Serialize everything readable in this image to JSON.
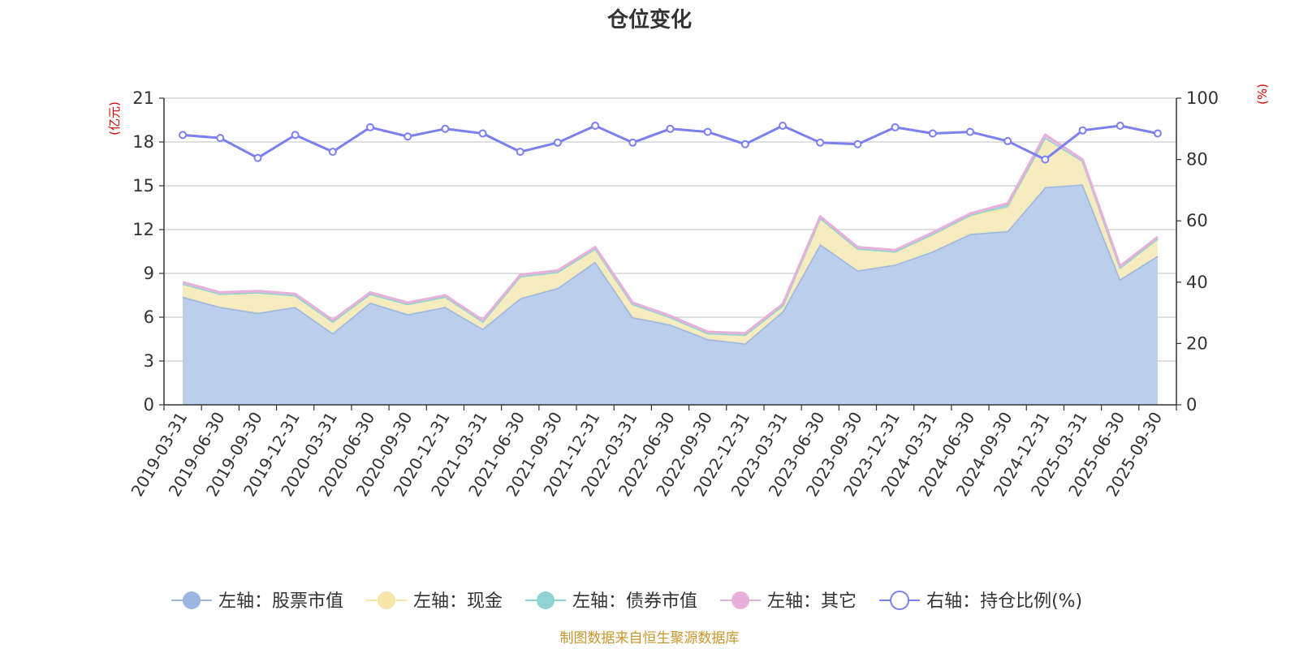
{
  "chart_data": {
    "type": "area",
    "title": "仓位变化",
    "source_note": "制图数据来自恒生聚源数据库",
    "y_left_unit": "(亿元)",
    "y_right_unit": "(%)",
    "ylim_left": [
      0,
      21
    ],
    "ylim_right": [
      0,
      100
    ],
    "y_left_ticks": [
      0,
      3,
      6,
      9,
      12,
      15,
      18,
      21
    ],
    "y_right_ticks": [
      0,
      20,
      40,
      60,
      80,
      100
    ],
    "grid": true,
    "legend_position": "bottom",
    "categories": [
      "2019-03-31",
      "2019-06-30",
      "2019-09-30",
      "2019-12-31",
      "2020-03-31",
      "2020-06-30",
      "2020-09-30",
      "2020-12-31",
      "2021-03-31",
      "2021-06-30",
      "2021-09-30",
      "2021-12-31",
      "2022-03-31",
      "2022-06-30",
      "2022-09-30",
      "2022-12-31",
      "2023-03-31",
      "2023-06-30",
      "2023-09-30",
      "2023-12-31",
      "2024-03-31",
      "2024-06-30",
      "2024-09-30",
      "2024-12-31",
      "2025-03-31",
      "2025-06-30",
      "2025-09-30"
    ],
    "series": [
      {
        "name": "左轴：股票市值",
        "axis": "left",
        "color": "#9bb6e0",
        "fill": "#b7cbea",
        "values": [
          7.4,
          6.7,
          6.3,
          6.7,
          4.9,
          7.0,
          6.2,
          6.7,
          5.2,
          7.3,
          8.0,
          9.8,
          6.0,
          5.5,
          4.5,
          4.2,
          6.4,
          11.0,
          9.2,
          9.6,
          10.5,
          11.7,
          11.9,
          14.9,
          15.1,
          8.6,
          10.2
        ]
      },
      {
        "name": "左轴：现金",
        "axis": "left",
        "color": "#f5e6a8",
        "fill": "#f7ebbd",
        "values": [
          0.9,
          0.9,
          1.4,
          0.8,
          0.8,
          0.6,
          0.7,
          0.7,
          0.5,
          1.5,
          1.1,
          0.9,
          0.9,
          0.5,
          0.4,
          0.6,
          0.4,
          1.8,
          1.5,
          0.9,
          1.2,
          1.3,
          1.6,
          3.4,
          1.6,
          0.8,
          1.1
        ]
      },
      {
        "name": "左轴：债券市值",
        "axis": "left",
        "color": "#8fd3d2",
        "fill": "#a6dcd8",
        "values": [
          0,
          0,
          0,
          0,
          0,
          0,
          0,
          0,
          0,
          0,
          0,
          0,
          0,
          0,
          0,
          0,
          0,
          0,
          0,
          0,
          0,
          0,
          0.2,
          0,
          0,
          0,
          0.1
        ]
      },
      {
        "name": "左轴：其它",
        "axis": "left",
        "color": "#e6b0d8",
        "fill": "#ecc4e2",
        "values": [
          0.1,
          0.1,
          0.1,
          0.1,
          0.1,
          0.1,
          0.1,
          0.1,
          0.1,
          0.1,
          0.1,
          0.1,
          0.1,
          0.1,
          0.1,
          0.1,
          0.1,
          0.1,
          0.1,
          0.1,
          0.1,
          0.1,
          0.1,
          0.2,
          0.1,
          0.1,
          0.1
        ]
      },
      {
        "name": "右轴：持仓比例(%)",
        "axis": "right",
        "color": "#7b7ff0",
        "values": [
          88,
          87,
          80.5,
          88,
          82.5,
          90.5,
          87.5,
          90,
          88.5,
          82.5,
          85.5,
          91,
          85.5,
          90,
          89,
          85,
          91,
          85.5,
          85,
          90.5,
          88.5,
          89,
          86,
          80,
          89.5,
          91,
          88.5
        ]
      }
    ]
  }
}
